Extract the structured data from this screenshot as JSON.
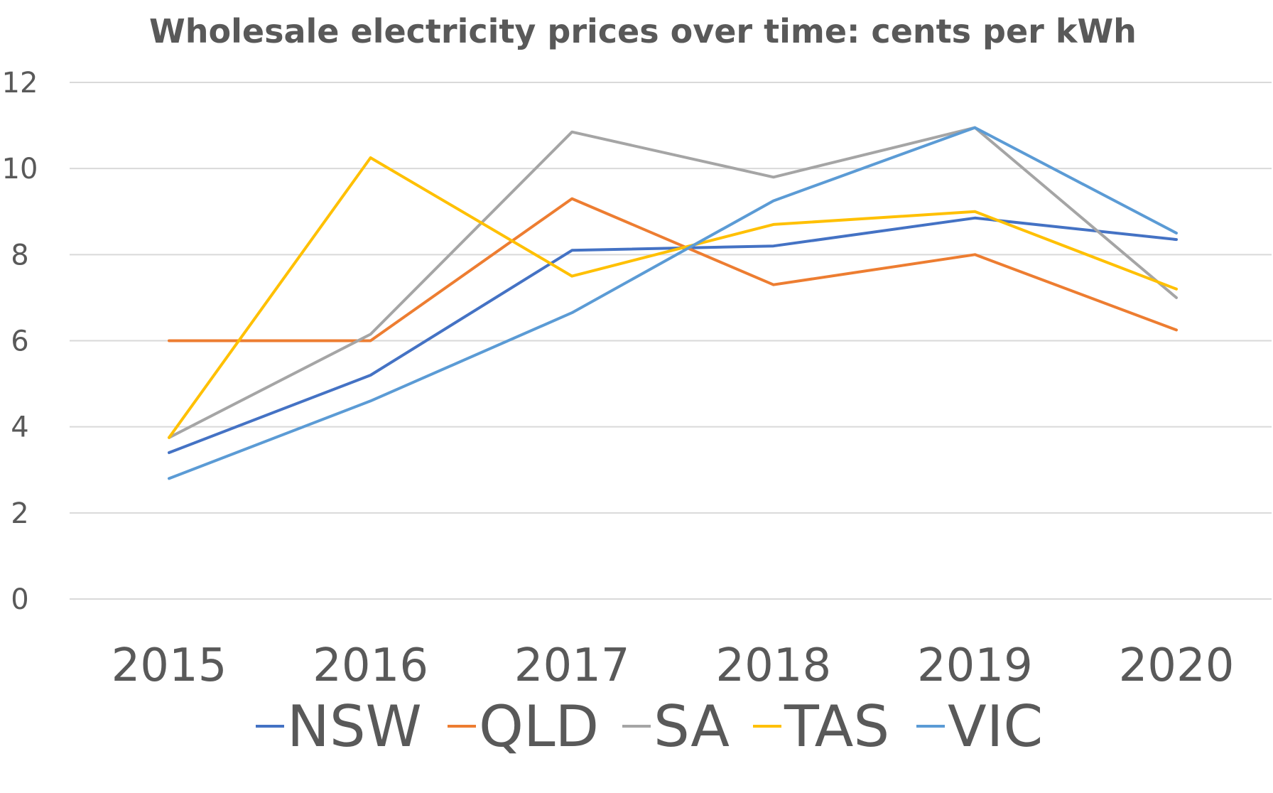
{
  "chart_data": {
    "type": "line",
    "title": "Wholesale electricity prices over time: cents per kWh",
    "xlabel": "",
    "ylabel": "",
    "categories": [
      "2015",
      "2016",
      "2017",
      "2018",
      "2019",
      "2020"
    ],
    "ylim": [
      0,
      12
    ],
    "yticks": [
      "0",
      "2",
      "4",
      "6",
      "8",
      "10",
      "12"
    ],
    "grid": true,
    "legend_position": "bottom",
    "series": [
      {
        "name": "NSW",
        "color": "#4472c4",
        "values": [
          3.4,
          5.2,
          8.1,
          8.2,
          8.85,
          8.35
        ]
      },
      {
        "name": "QLD",
        "color": "#ed7d31",
        "values": [
          6.0,
          6.0,
          9.3,
          7.3,
          8.0,
          6.25
        ]
      },
      {
        "name": "SA",
        "color": "#a5a5a5",
        "values": [
          3.75,
          6.15,
          10.85,
          9.8,
          10.95,
          7.0
        ]
      },
      {
        "name": "TAS",
        "color": "#ffc000",
        "values": [
          3.75,
          10.25,
          7.5,
          8.7,
          9.0,
          7.2
        ]
      },
      {
        "name": "VIC",
        "color": "#5b9bd5",
        "values": [
          2.8,
          4.6,
          6.65,
          9.25,
          10.95,
          8.5
        ]
      }
    ]
  }
}
